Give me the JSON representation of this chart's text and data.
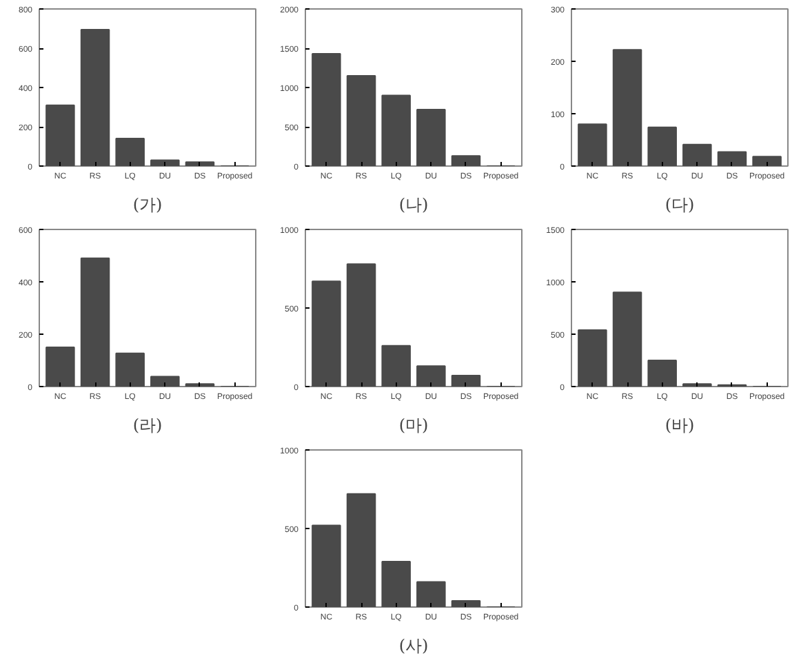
{
  "chart_data": [
    {
      "type": "bar",
      "title": "(가)",
      "categories": [
        "NC",
        "RS",
        "LQ",
        "DU",
        "DS",
        "Proposed"
      ],
      "values": [
        310,
        695,
        140,
        30,
        20,
        0
      ],
      "color": "#4a4a4a",
      "ylim": [
        0,
        800
      ],
      "yticks": [
        0,
        200,
        400,
        600,
        800
      ],
      "grid": false
    },
    {
      "type": "bar",
      "title": "(나)",
      "categories": [
        "NC",
        "RS",
        "LQ",
        "DU",
        "DS",
        "Proposed"
      ],
      "values": [
        1430,
        1150,
        900,
        720,
        130,
        0
      ],
      "color": "#4a4a4a",
      "ylim": [
        0,
        2000
      ],
      "yticks": [
        0,
        500,
        1000,
        1500,
        2000
      ],
      "grid": false
    },
    {
      "type": "bar",
      "title": "(다)",
      "categories": [
        "NC",
        "RS",
        "LQ",
        "DU",
        "DS",
        "Proposed"
      ],
      "values": [
        80,
        222,
        74,
        41,
        27,
        18
      ],
      "color": "#4a4a4a",
      "ylim": [
        0,
        300
      ],
      "yticks": [
        0,
        100,
        200,
        300
      ],
      "grid": false
    },
    {
      "type": "bar",
      "title": "(라)",
      "categories": [
        "NC",
        "RS",
        "LQ",
        "DU",
        "DS",
        "Proposed"
      ],
      "values": [
        150,
        490,
        127,
        38,
        10,
        0
      ],
      "color": "#4a4a4a",
      "ylim": [
        0,
        600
      ],
      "yticks": [
        0,
        200,
        400,
        600
      ],
      "grid": false
    },
    {
      "type": "bar",
      "title": "(마)",
      "categories": [
        "NC",
        "RS",
        "LQ",
        "DU",
        "DS",
        "Proposed"
      ],
      "values": [
        670,
        780,
        260,
        130,
        70,
        0
      ],
      "color": "#4a4a4a",
      "ylim": [
        0,
        1000
      ],
      "yticks": [
        0,
        500,
        1000
      ],
      "grid": false
    },
    {
      "type": "bar",
      "title": "(바)",
      "categories": [
        "NC",
        "RS",
        "LQ",
        "DU",
        "DS",
        "Proposed"
      ],
      "values": [
        540,
        900,
        250,
        25,
        15,
        0
      ],
      "color": "#4a4a4a",
      "ylim": [
        0,
        1500
      ],
      "yticks": [
        0,
        500,
        1000,
        1500
      ],
      "grid": false
    },
    {
      "type": "bar",
      "title": "(사)",
      "categories": [
        "NC",
        "RS",
        "LQ",
        "DU",
        "DS",
        "Proposed"
      ],
      "values": [
        520,
        720,
        290,
        160,
        40,
        0
      ],
      "color": "#4a4a4a",
      "ylim": [
        0,
        1000
      ],
      "yticks": [
        0,
        500,
        1000
      ],
      "grid": false
    }
  ]
}
